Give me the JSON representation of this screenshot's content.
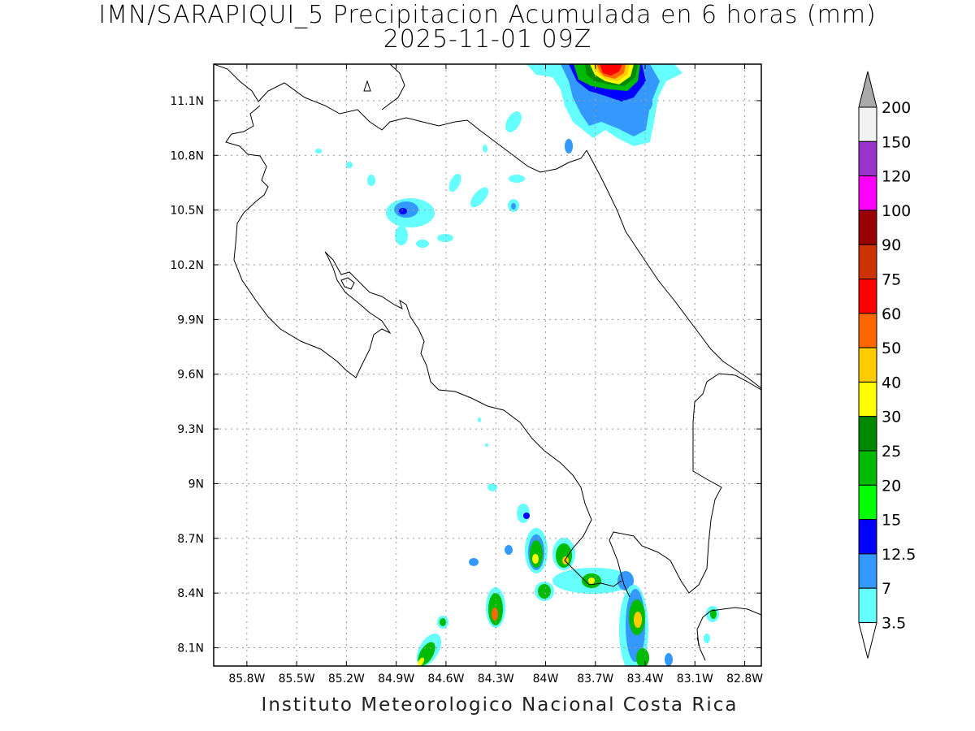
{
  "title_line1": "IMN/SARAPIQUI_5 Precipitacion Acumulada en 6 horas (mm)",
  "title_line2": "2025-11-01 09Z",
  "footer": "Instituto Meteorologico Nacional Costa Rica",
  "map": {
    "lon_range": [
      -86.0,
      -82.7
    ],
    "lat_range": [
      8.0,
      11.3
    ],
    "lon_ticks": [
      {
        "value": -85.8,
        "label": "85.8W"
      },
      {
        "value": -85.5,
        "label": "85.5W"
      },
      {
        "value": -85.2,
        "label": "85.2W"
      },
      {
        "value": -84.9,
        "label": "84.9W"
      },
      {
        "value": -84.6,
        "label": "84.6W"
      },
      {
        "value": -84.3,
        "label": "84.3W"
      },
      {
        "value": -84.0,
        "label": "84W"
      },
      {
        "value": -83.7,
        "label": "83.7W"
      },
      {
        "value": -83.4,
        "label": "83.4W"
      },
      {
        "value": -83.1,
        "label": "83.1W"
      },
      {
        "value": -82.8,
        "label": "82.8W"
      }
    ],
    "lat_ticks": [
      {
        "value": 11.1,
        "label": "11.1N"
      },
      {
        "value": 10.8,
        "label": "10.8N"
      },
      {
        "value": 10.5,
        "label": "10.5N"
      },
      {
        "value": 10.2,
        "label": "10.2N"
      },
      {
        "value": 9.9,
        "label": "9.9N"
      },
      {
        "value": 9.6,
        "label": "9.6N"
      },
      {
        "value": 9.3,
        "label": "9.3N"
      },
      {
        "value": 9.0,
        "label": "9N"
      },
      {
        "value": 8.7,
        "label": "8.7N"
      },
      {
        "value": 8.4,
        "label": "8.4N"
      },
      {
        "value": 8.1,
        "label": "8.1N"
      }
    ]
  },
  "colorbar": {
    "levels": [
      {
        "label": "200",
        "color": "#aaaaaa"
      },
      {
        "label": "150",
        "color": "#f2f2f2"
      },
      {
        "label": "120",
        "color": "#9933cc"
      },
      {
        "label": "100",
        "color": "#ff00ff"
      },
      {
        "label": "90",
        "color": "#990000"
      },
      {
        "label": "75",
        "color": "#cc3300"
      },
      {
        "label": "60",
        "color": "#ff0000"
      },
      {
        "label": "50",
        "color": "#ff6600"
      },
      {
        "label": "40",
        "color": "#ffcc00"
      },
      {
        "label": "30",
        "color": "#ffff00"
      },
      {
        "label": "25",
        "color": "#008800"
      },
      {
        "label": "20",
        "color": "#00bb00"
      },
      {
        "label": "15",
        "color": "#00ff00"
      },
      {
        "label": "12.5",
        "color": "#0000ff"
      },
      {
        "label": "7",
        "color": "#3399ff"
      },
      {
        "label": "3.5",
        "color": "#66ffff"
      }
    ],
    "lowest_color": "#66ffff"
  }
}
